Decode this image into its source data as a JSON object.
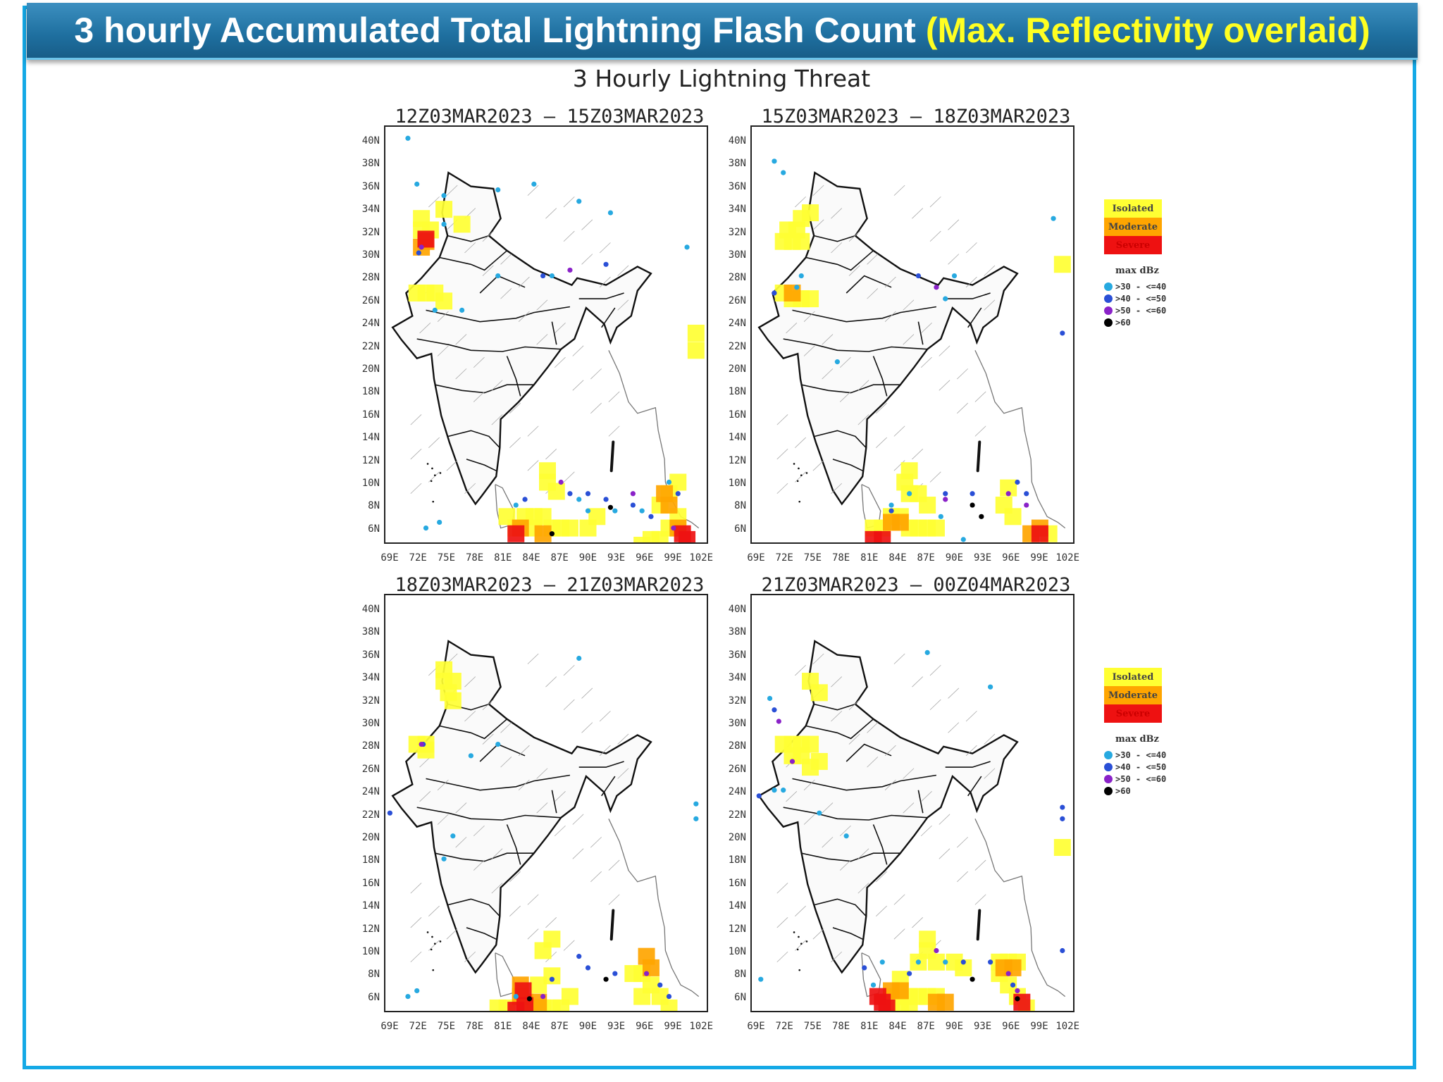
{
  "banner": {
    "title": "3 hourly Accumulated Total Lightning Flash Count",
    "highlight": "(Max. Reflectivity overlaid)"
  },
  "figure_title": "3 Hourly Lightning Threat",
  "axes": {
    "lat_labels": [
      "40N",
      "38N",
      "36N",
      "34N",
      "32N",
      "30N",
      "28N",
      "26N",
      "24N",
      "22N",
      "20N",
      "18N",
      "16N",
      "14N",
      "12N",
      "10N",
      "8N",
      "6N"
    ],
    "lon_labels": [
      "69E",
      "72E",
      "75E",
      "78E",
      "81E",
      "84E",
      "87E",
      "90E",
      "93E",
      "96E",
      "99E",
      "102E"
    ]
  },
  "panels": [
    {
      "title": "12Z03MAR2023 – 15Z03MAR2023"
    },
    {
      "title": "15Z03MAR2023 – 18Z03MAR2023"
    },
    {
      "title": "18Z03MAR2023 – 21Z03MAR2023"
    },
    {
      "title": "21Z03MAR2023 – 00Z04MAR2023"
    }
  ],
  "legend": {
    "threat": [
      {
        "label": "Isolated",
        "color": "#ffff33"
      },
      {
        "label": "Moderate",
        "color": "#ffa500"
      },
      {
        "label": "Severe",
        "color": "#ee1111"
      }
    ],
    "dbz_title": "max dBz",
    "dbz": [
      {
        "label": ">30 - <=40",
        "color": "#27a9e0"
      },
      {
        "label": ">40 - <=50",
        "color": "#2a4fd6"
      },
      {
        "label": ">50 - <=60",
        "color": "#8a22c8"
      },
      {
        "label": ">60",
        "color": "#000000"
      }
    ]
  },
  "colors": {
    "frame": "#14a9e6",
    "banner_text": "#ffffff",
    "banner_highlight": "#ffff22"
  }
}
